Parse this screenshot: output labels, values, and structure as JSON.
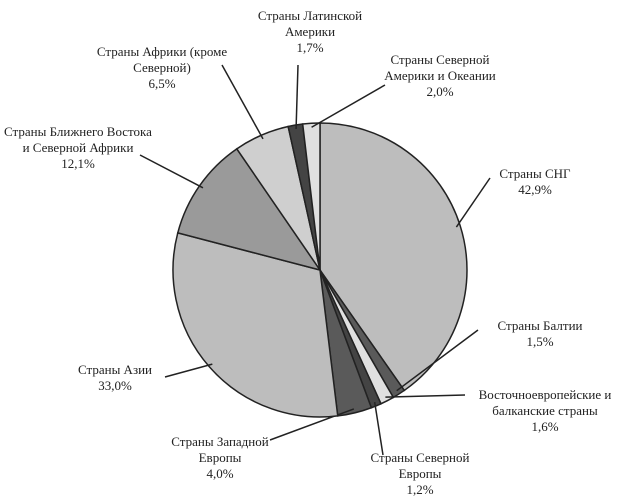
{
  "chart_data": {
    "type": "pie",
    "categories": [
      "Страны СНГ",
      "Страны Балтии",
      "Восточноевропейские и балканские страны",
      "Страны Северной Европы",
      "Страны Западной Европы",
      "Страны Азии",
      "Страны Ближнего Востока и Северной Африки",
      "Страны Африки (кроме Северной)",
      "Страны Латинской Америки",
      "Страны Северной Америки и Океании"
    ],
    "values": [
      42.9,
      1.5,
      1.6,
      1.2,
      4.0,
      33.0,
      12.1,
      6.5,
      1.7,
      2.0
    ],
    "value_labels": [
      "42,9%",
      "1,5%",
      "1,6%",
      "1,2%",
      "4,0%",
      "33,0%",
      "12,1%",
      "6,5%",
      "1,7%",
      "2,0%"
    ],
    "colors": [
      "#bdbdbd",
      "#5a5a5a",
      "#e0e0e0",
      "#444444",
      "#5a5a5a",
      "#bdbdbd",
      "#9a9a9a",
      "#cfcfcf",
      "#444444",
      "#e0e0e0"
    ]
  }
}
